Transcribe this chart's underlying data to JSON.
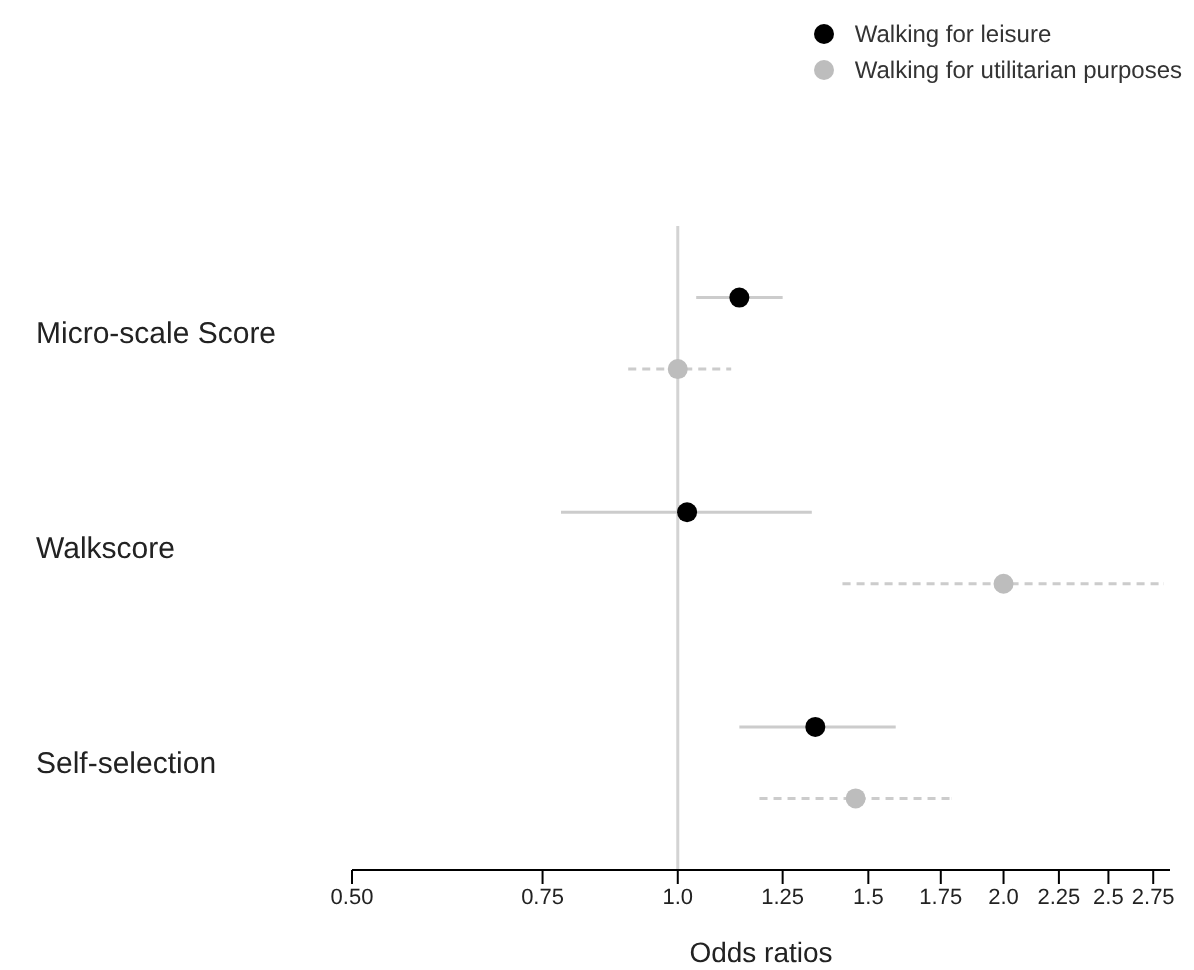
{
  "chart_data": {
    "type": "scatter",
    "orientation": "horizontal",
    "xlabel": "Odds ratios",
    "categories": [
      "Micro-scale Score",
      "Walkscore",
      "Self-selection"
    ],
    "series": [
      {
        "name": "Walking for leisure",
        "color": "#000000",
        "line_style": "solid",
        "values": [
          1.14,
          1.02,
          1.34
        ],
        "errors": [
          [
            1.04,
            1.25
          ],
          [
            0.78,
            1.33
          ],
          [
            1.14,
            1.59
          ]
        ]
      },
      {
        "name": "Walking for utilitarian purposes",
        "color": "#bdbdbd",
        "line_style": "dashed",
        "values": [
          1.0,
          2.0,
          1.46
        ],
        "errors": [
          [
            0.9,
            1.12
          ],
          [
            1.42,
            2.81
          ],
          [
            1.19,
            1.79
          ]
        ]
      }
    ],
    "log": "x",
    "xlim": [
      0.5,
      2.85
    ],
    "xticks": [
      {
        "value": 0.5,
        "label": "0.50"
      },
      0.75,
      {
        "value": 1,
        "label": "1.0"
      },
      1.25,
      1.5,
      1.75,
      {
        "value": 2,
        "label": "2.0"
      },
      2.25,
      2.5,
      2.75
    ],
    "ref_lines": [
      {
        "axis": "x",
        "value": 1,
        "label": null,
        "color": "#d3d3d3"
      }
    ],
    "marker": "circle",
    "legend": "top right",
    "grid": false
  }
}
